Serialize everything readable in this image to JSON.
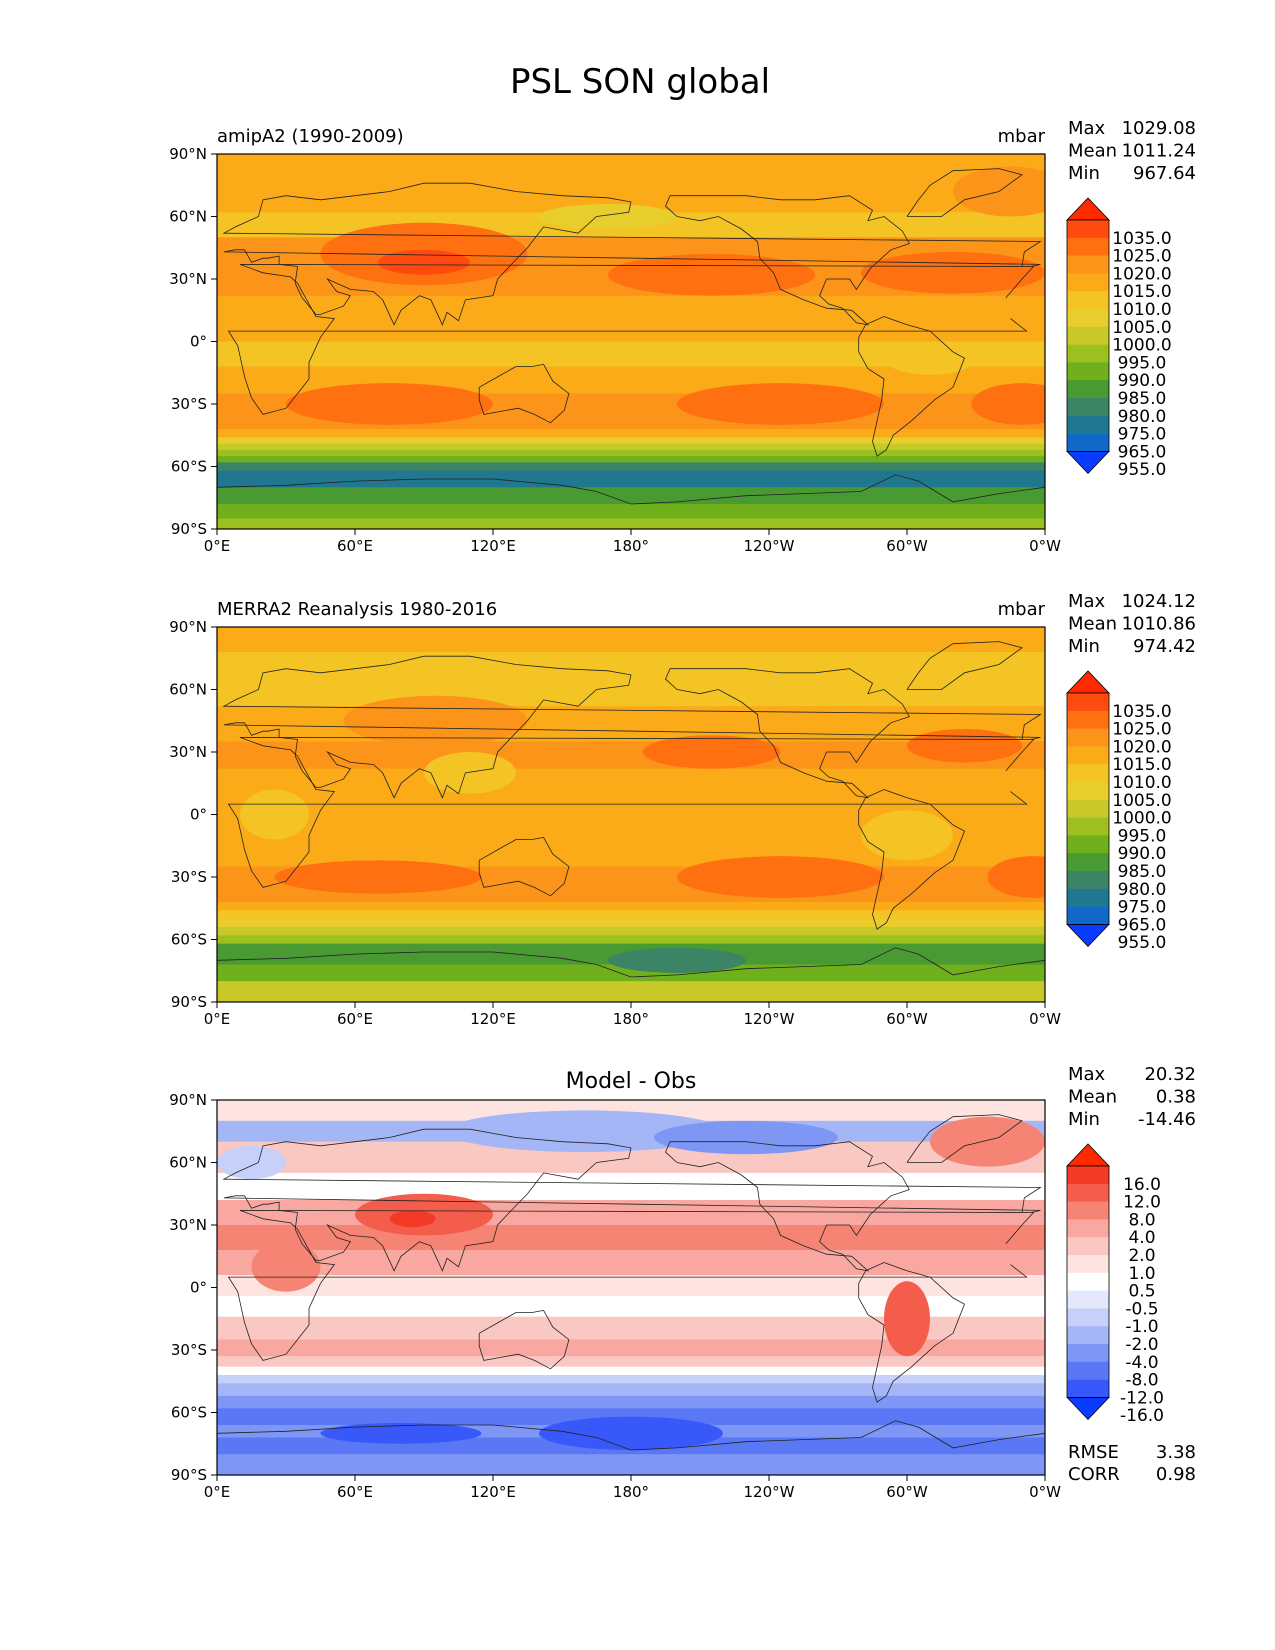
{
  "title": "PSL SON global",
  "x_ticks": [
    "0°E",
    "60°E",
    "120°E",
    "180°",
    "120°W",
    "60°W",
    "0°W"
  ],
  "y_ticks": [
    "90°N",
    "60°N",
    "30°N",
    "0°",
    "30°S",
    "60°S",
    "90°S"
  ],
  "panels": [
    {
      "id": "model",
      "left_title": "amipA2 (1990-2009)",
      "center_title": "",
      "right_title": "mbar",
      "stats": [
        {
          "label": "Max",
          "value": "1029.08"
        },
        {
          "label": "Mean",
          "value": "1011.24"
        },
        {
          "label": "Min",
          "value": "967.64"
        }
      ],
      "colorbar_labels": [
        "1035.0",
        "1025.0",
        "1020.0",
        "1015.0",
        "1010.0",
        "1005.0",
        "1000.0",
        "995.0",
        "990.0",
        "985.0",
        "980.0",
        "975.0",
        "965.0",
        "955.0"
      ],
      "colorbar_colors": [
        "#ff2a00",
        "#ff4a10",
        "#ff7010",
        "#fb9418",
        "#fbaa18",
        "#f4c424",
        "#e8ce2c",
        "#c8c828",
        "#9cc020",
        "#70b01c",
        "#4a9a34",
        "#3c8466",
        "#207890",
        "#1068c8",
        "#0a3cff"
      ],
      "bands_source": "model"
    },
    {
      "id": "obs",
      "left_title": "MERRA2 Reanalysis 1980-2016",
      "center_title": "",
      "right_title": "mbar",
      "stats": [
        {
          "label": "Max",
          "value": "1024.12"
        },
        {
          "label": "Mean",
          "value": "1010.86"
        },
        {
          "label": "Min",
          "value": "974.42"
        }
      ],
      "colorbar_labels": [
        "1035.0",
        "1025.0",
        "1020.0",
        "1015.0",
        "1010.0",
        "1005.0",
        "1000.0",
        "995.0",
        "990.0",
        "985.0",
        "980.0",
        "975.0",
        "965.0",
        "955.0"
      ],
      "colorbar_colors": [
        "#ff2a00",
        "#ff4a10",
        "#ff7010",
        "#fb9418",
        "#fbaa18",
        "#f4c424",
        "#e8ce2c",
        "#c8c828",
        "#9cc020",
        "#70b01c",
        "#4a9a34",
        "#3c8466",
        "#207890",
        "#1068c8",
        "#0a3cff"
      ],
      "bands_source": "obs"
    },
    {
      "id": "diff",
      "left_title": "",
      "center_title": "Model - Obs",
      "right_title": "",
      "stats": [
        {
          "label": "Max",
          "value": "20.32"
        },
        {
          "label": "Mean",
          "value": "0.38"
        },
        {
          "label": "Min",
          "value": "-14.46"
        }
      ],
      "bottom_stats": [
        {
          "label": "RMSE",
          "value": "3.38"
        },
        {
          "label": "CORR",
          "value": "0.98"
        }
      ],
      "colorbar_labels": [
        "16.0",
        "12.0",
        "8.0",
        "4.0",
        "2.0",
        "1.0",
        "0.5",
        "-0.5",
        "-1.0",
        "-2.0",
        "-4.0",
        "-8.0",
        "-12.0",
        "-16.0"
      ],
      "colorbar_colors": [
        "#ff2a00",
        "#f23a26",
        "#f45c4c",
        "#f68474",
        "#f8a8a0",
        "#fac8c2",
        "#fde4e0",
        "#ffffff",
        "#e4e8fa",
        "#c6d0f8",
        "#a4b6f6",
        "#7e96f4",
        "#5a78f6",
        "#3858fa",
        "#0a3cff"
      ],
      "bands_source": "diff"
    }
  ],
  "field_bands": {
    "model": [
      {
        "lat": 90,
        "color": "#fbaa18"
      },
      {
        "lat": 75,
        "color": "#fbaa18"
      },
      {
        "lat": 62,
        "color": "#f4c424"
      },
      {
        "lat": 50,
        "color": "#fb9418"
      },
      {
        "lat": 35,
        "color": "#fb9418"
      },
      {
        "lat": 22,
        "color": "#fbaa18"
      },
      {
        "lat": 10,
        "color": "#fbaa18"
      },
      {
        "lat": 0,
        "color": "#f4c424"
      },
      {
        "lat": -12,
        "color": "#fbaa18"
      },
      {
        "lat": -25,
        "color": "#fb9418"
      },
      {
        "lat": -35,
        "color": "#fb9418"
      },
      {
        "lat": -42,
        "color": "#fbaa18"
      },
      {
        "lat": -46,
        "color": "#e8ce2c"
      },
      {
        "lat": -49,
        "color": "#c8c828"
      },
      {
        "lat": -52,
        "color": "#9cc020"
      },
      {
        "lat": -55,
        "color": "#70b01c"
      },
      {
        "lat": -58,
        "color": "#3c8466"
      },
      {
        "lat": -62,
        "color": "#207890"
      },
      {
        "lat": -66,
        "color": "#207890"
      },
      {
        "lat": -70,
        "color": "#4a9a34"
      },
      {
        "lat": -78,
        "color": "#70b01c"
      },
      {
        "lat": -85,
        "color": "#9cc020"
      },
      {
        "lat": -90,
        "color": "#9cc020"
      }
    ],
    "obs": [
      {
        "lat": 90,
        "color": "#fbaa18"
      },
      {
        "lat": 78,
        "color": "#f4c424"
      },
      {
        "lat": 65,
        "color": "#f4c424"
      },
      {
        "lat": 52,
        "color": "#fbaa18"
      },
      {
        "lat": 35,
        "color": "#fb9418"
      },
      {
        "lat": 22,
        "color": "#fbaa18"
      },
      {
        "lat": 10,
        "color": "#fbaa18"
      },
      {
        "lat": 0,
        "color": "#fbaa18"
      },
      {
        "lat": -12,
        "color": "#fbaa18"
      },
      {
        "lat": -25,
        "color": "#fb9418"
      },
      {
        "lat": -35,
        "color": "#fb9418"
      },
      {
        "lat": -42,
        "color": "#fbaa18"
      },
      {
        "lat": -46,
        "color": "#f4c424"
      },
      {
        "lat": -50,
        "color": "#e8ce2c"
      },
      {
        "lat": -54,
        "color": "#c8c828"
      },
      {
        "lat": -58,
        "color": "#9cc020"
      },
      {
        "lat": -62,
        "color": "#4a9a34"
      },
      {
        "lat": -67,
        "color": "#4a9a34"
      },
      {
        "lat": -72,
        "color": "#70b01c"
      },
      {
        "lat": -80,
        "color": "#c8c828"
      },
      {
        "lat": -90,
        "color": "#9cc020"
      }
    ],
    "diff": [
      {
        "lat": 90,
        "color": "#fde4e0"
      },
      {
        "lat": 80,
        "color": "#a4b6f6"
      },
      {
        "lat": 70,
        "color": "#fac8c2"
      },
      {
        "lat": 55,
        "color": "#ffffff"
      },
      {
        "lat": 42,
        "color": "#f8a8a0"
      },
      {
        "lat": 30,
        "color": "#f68474"
      },
      {
        "lat": 18,
        "color": "#f8a8a0"
      },
      {
        "lat": 6,
        "color": "#fde4e0"
      },
      {
        "lat": -4,
        "color": "#ffffff"
      },
      {
        "lat": -14,
        "color": "#fac8c2"
      },
      {
        "lat": -25,
        "color": "#f8a8a0"
      },
      {
        "lat": -33,
        "color": "#fac8c2"
      },
      {
        "lat": -38,
        "color": "#ffffff"
      },
      {
        "lat": -42,
        "color": "#c6d0f8"
      },
      {
        "lat": -46,
        "color": "#a4b6f6"
      },
      {
        "lat": -52,
        "color": "#7e96f4"
      },
      {
        "lat": -58,
        "color": "#5a78f6"
      },
      {
        "lat": -66,
        "color": "#7e96f4"
      },
      {
        "lat": -72,
        "color": "#5a78f6"
      },
      {
        "lat": -80,
        "color": "#7e96f4"
      },
      {
        "lat": -90,
        "color": "#a4b6f6"
      }
    ]
  },
  "field_blobs": {
    "model": [
      {
        "lon": 90,
        "lat": 42,
        "rlon": 45,
        "rlat": 15,
        "color": "#ff7010"
      },
      {
        "lon": 90,
        "lat": 38,
        "rlon": 20,
        "rlat": 6,
        "color": "#ff4a10"
      },
      {
        "lon": 215,
        "lat": 32,
        "rlon": 45,
        "rlat": 10,
        "color": "#ff7010"
      },
      {
        "lon": 320,
        "lat": 33,
        "rlon": 40,
        "rlat": 10,
        "color": "#ff7010"
      },
      {
        "lon": 75,
        "lat": -30,
        "rlon": 45,
        "rlat": 10,
        "color": "#ff7010"
      },
      {
        "lon": 245,
        "lat": -30,
        "rlon": 45,
        "rlat": 10,
        "color": "#ff7010"
      },
      {
        "lon": 350,
        "lat": -30,
        "rlon": 22,
        "rlat": 10,
        "color": "#ff7010"
      },
      {
        "lon": 345,
        "lat": 72,
        "rlon": 25,
        "rlat": 12,
        "color": "#fb9418"
      },
      {
        "lon": 170,
        "lat": 60,
        "rlon": 30,
        "rlat": 6,
        "color": "#e8ce2c"
      },
      {
        "lon": 310,
        "lat": -8,
        "rlon": 20,
        "rlat": 8,
        "color": "#f4c424"
      }
    ],
    "obs": [
      {
        "lon": 95,
        "lat": 45,
        "rlon": 40,
        "rlat": 12,
        "color": "#fb9418"
      },
      {
        "lon": 215,
        "lat": 30,
        "rlon": 30,
        "rlat": 8,
        "color": "#ff7010"
      },
      {
        "lon": 325,
        "lat": 33,
        "rlon": 25,
        "rlat": 8,
        "color": "#ff7010"
      },
      {
        "lon": 70,
        "lat": -30,
        "rlon": 45,
        "rlat": 8,
        "color": "#ff7010"
      },
      {
        "lon": 245,
        "lat": -30,
        "rlon": 45,
        "rlat": 10,
        "color": "#ff7010"
      },
      {
        "lon": 355,
        "lat": -30,
        "rlon": 20,
        "rlat": 10,
        "color": "#ff7010"
      },
      {
        "lon": 300,
        "lat": -10,
        "rlon": 20,
        "rlat": 12,
        "color": "#f4c424"
      },
      {
        "lon": 25,
        "lat": 0,
        "rlon": 15,
        "rlat": 12,
        "color": "#f4c424"
      },
      {
        "lon": 110,
        "lat": 20,
        "rlon": 20,
        "rlat": 10,
        "color": "#f4c424"
      },
      {
        "lon": 200,
        "lat": -70,
        "rlon": 30,
        "rlat": 6,
        "color": "#3c8466"
      }
    ],
    "diff": [
      {
        "lon": 90,
        "lat": 35,
        "rlon": 30,
        "rlat": 10,
        "color": "#f45c4c"
      },
      {
        "lon": 85,
        "lat": 33,
        "rlon": 10,
        "rlat": 4,
        "color": "#f23a26"
      },
      {
        "lon": 300,
        "lat": -15,
        "rlon": 10,
        "rlat": 18,
        "color": "#f45c4c"
      },
      {
        "lon": 335,
        "lat": 70,
        "rlon": 25,
        "rlat": 12,
        "color": "#f68474"
      },
      {
        "lon": 160,
        "lat": 75,
        "rlon": 60,
        "rlat": 10,
        "color": "#a4b6f6"
      },
      {
        "lon": 230,
        "lat": 72,
        "rlon": 40,
        "rlat": 8,
        "color": "#7e96f4"
      },
      {
        "lon": 180,
        "lat": -70,
        "rlon": 40,
        "rlat": 8,
        "color": "#3858fa"
      },
      {
        "lon": 80,
        "lat": -70,
        "rlon": 35,
        "rlat": 5,
        "color": "#3858fa"
      },
      {
        "lon": 15,
        "lat": 60,
        "rlon": 15,
        "rlat": 8,
        "color": "#c6d0f8"
      },
      {
        "lon": 30,
        "lat": 10,
        "rlon": 15,
        "rlat": 12,
        "color": "#f68474"
      }
    ]
  }
}
